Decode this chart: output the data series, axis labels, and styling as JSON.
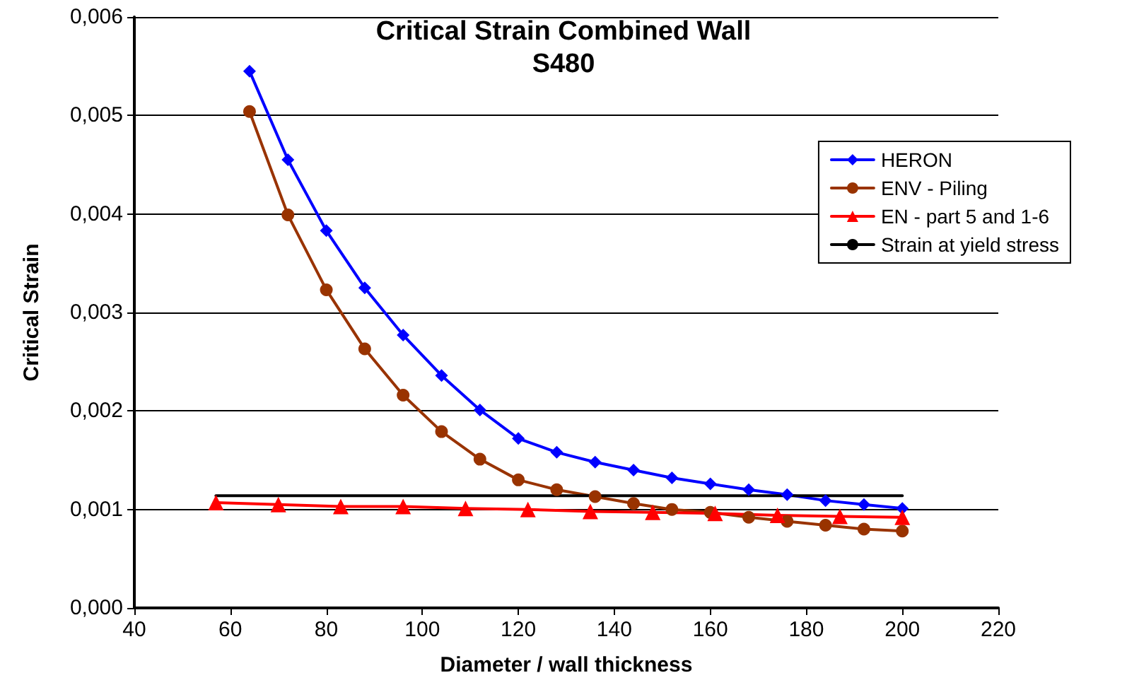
{
  "chart_data": {
    "type": "line",
    "title": "Critical Strain Combined Wall",
    "subtitle": "S480",
    "xlabel": "Diameter / wall thickness",
    "ylabel": "Critical Strain",
    "xlim": [
      40,
      220
    ],
    "xticks": [
      40,
      60,
      80,
      100,
      120,
      140,
      160,
      180,
      200,
      220
    ],
    "ylim": [
      0,
      0.006
    ],
    "yticks": [
      {
        "value": 0,
        "label": "0,000"
      },
      {
        "value": 0.001,
        "label": "0,001"
      },
      {
        "value": 0.002,
        "label": "0,002"
      },
      {
        "value": 0.003,
        "label": "0,003"
      },
      {
        "value": 0.004,
        "label": "0,004"
      },
      {
        "value": 0.005,
        "label": "0,005"
      },
      {
        "value": 0.006,
        "label": "0,006"
      }
    ],
    "grid": "y",
    "legend": "top right",
    "line_style": "solid",
    "series": [
      {
        "name": "HERON",
        "color": "#0000ff",
        "marker": "diamond",
        "x": [
          64,
          72,
          80,
          88,
          96,
          104,
          112,
          120,
          128,
          136,
          144,
          152,
          160,
          168,
          176,
          184,
          192,
          200
        ],
        "values": [
          0.00545,
          0.00455,
          0.00383,
          0.00325,
          0.00277,
          0.00236,
          0.00201,
          0.00172,
          0.00158,
          0.00148,
          0.0014,
          0.00132,
          0.00126,
          0.0012,
          0.00115,
          0.00109,
          0.00105,
          0.00101
        ]
      },
      {
        "name": "ENV - Piling",
        "color": "#993300",
        "marker": "circle",
        "x": [
          64,
          72,
          80,
          88,
          96,
          104,
          112,
          120,
          128,
          136,
          144,
          152,
          160,
          168,
          176,
          184,
          192,
          200
        ],
        "values": [
          0.00504,
          0.00399,
          0.00323,
          0.00263,
          0.00216,
          0.00179,
          0.00151,
          0.0013,
          0.0012,
          0.00113,
          0.00106,
          0.001,
          0.00097,
          0.00092,
          0.00088,
          0.00084,
          0.0008,
          0.00078
        ]
      },
      {
        "name": "EN - part 5 and 1-6",
        "color": "#ff0000",
        "marker": "triangle",
        "x": [
          57,
          70,
          83,
          96,
          109,
          122,
          135,
          148,
          161,
          174,
          187,
          200
        ],
        "values": [
          0.00107,
          0.00105,
          0.00103,
          0.00103,
          0.00101,
          0.001,
          0.00098,
          0.00097,
          0.00096,
          0.00094,
          0.00093,
          0.00092
        ]
      },
      {
        "name": "Strain at yield stress",
        "color": "#000000",
        "marker": "none",
        "x": [
          57,
          200
        ],
        "values": [
          0.00114,
          0.00114
        ]
      }
    ]
  }
}
